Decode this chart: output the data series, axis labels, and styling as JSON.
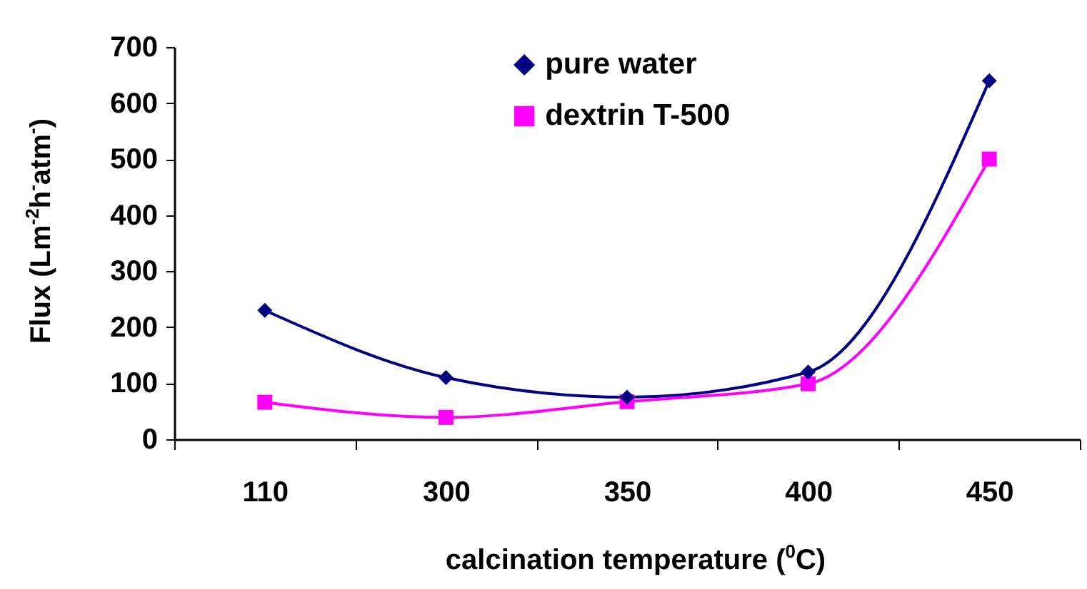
{
  "chart_data": {
    "type": "line",
    "xlabel": "calcination temperature ($^{0}$C)",
    "ylabel": "Flux (Lm$^{-2}$h$^{-}$atm$^{-}$)",
    "categories": [
      "110",
      "300",
      "350",
      "400",
      "450"
    ],
    "ylim": [
      0,
      700
    ],
    "yticks": [
      0,
      100,
      200,
      300,
      400,
      500,
      600,
      700
    ],
    "legend": "top",
    "line_style": "solid",
    "series": [
      {
        "name": "pure water",
        "color": "#000080",
        "marker": "diamond",
        "values": [
          230,
          110,
          75,
          120,
          640
        ]
      },
      {
        "name": "dextrin T-500",
        "color": "#ff00ff",
        "marker": "square",
        "values": [
          66,
          39,
          67,
          99,
          500
        ]
      }
    ]
  }
}
